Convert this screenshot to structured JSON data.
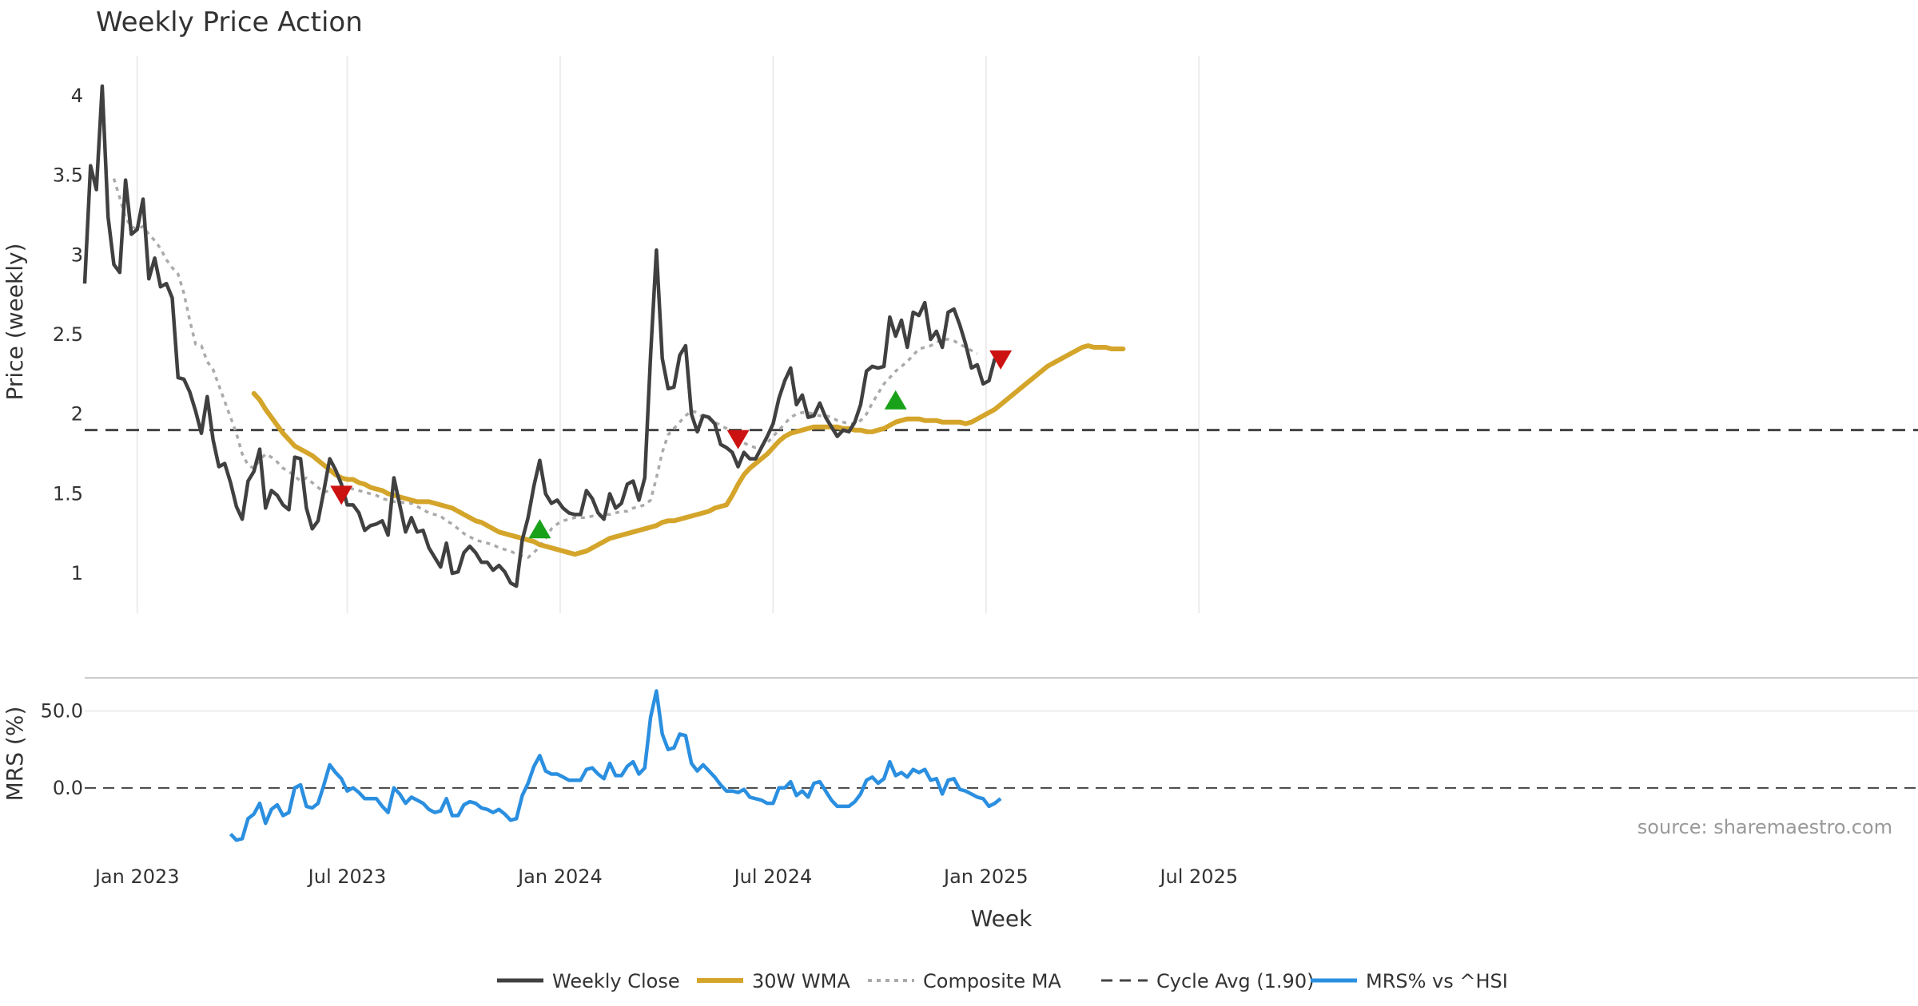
{
  "chart_data": {
    "type": "line",
    "title": "Weekly Price Action",
    "xlabel": "Week",
    "source": "source: sharemaestro.com",
    "x_ticks": [
      "Jan 2023",
      "Jul 2023",
      "Jan 2024",
      "Jul 2024",
      "Jan 2025",
      "Jul 2025"
    ],
    "price_panel": {
      "ylabel": "Price (weekly)",
      "ylim": [
        0.75,
        4.2
      ],
      "y_ticks": [
        "1",
        "1.5",
        "2",
        "2.5",
        "3",
        "3.5",
        "4"
      ],
      "cycle_avg": 1.9,
      "weekly_close": {
        "name": "Weekly Close",
        "start_week": 0,
        "values": [
          2.82,
          3.56,
          3.41,
          4.06,
          3.24,
          2.94,
          2.89,
          3.47,
          3.13,
          3.16,
          3.35,
          2.85,
          2.98,
          2.8,
          2.82,
          2.73,
          2.23,
          2.22,
          2.14,
          2.02,
          1.88,
          2.11,
          1.84,
          1.67,
          1.69,
          1.57,
          1.42,
          1.34,
          1.58,
          1.64,
          1.78,
          1.41,
          1.52,
          1.49,
          1.43,
          1.4,
          1.73,
          1.72,
          1.41,
          1.28,
          1.33,
          1.52,
          1.72,
          1.65,
          1.56,
          1.43,
          1.43,
          1.38,
          1.27,
          1.3,
          1.31,
          1.33,
          1.24,
          1.6,
          1.43,
          1.26,
          1.35,
          1.26,
          1.27,
          1.16,
          1.1,
          1.04,
          1.19,
          1.0,
          1.01,
          1.13,
          1.17,
          1.13,
          1.07,
          1.07,
          1.02,
          1.05,
          1.01,
          0.94,
          0.92,
          1.21,
          1.35,
          1.55,
          1.71,
          1.5,
          1.44,
          1.46,
          1.41,
          1.38,
          1.37,
          1.37,
          1.52,
          1.47,
          1.38,
          1.34,
          1.5,
          1.41,
          1.44,
          1.56,
          1.58,
          1.46,
          1.6,
          2.37,
          3.03,
          2.35,
          2.16,
          2.17,
          2.37,
          2.43,
          2.0,
          1.89,
          1.99,
          1.98,
          1.94,
          1.81,
          1.79,
          1.76,
          1.67,
          1.76,
          1.72,
          1.72,
          1.79,
          1.86,
          1.94,
          2.1,
          2.21,
          2.29,
          2.06,
          2.12,
          1.98,
          1.99,
          2.07,
          1.98,
          1.92,
          1.86,
          1.9,
          1.89,
          1.95,
          2.06,
          2.27,
          2.3,
          2.29,
          2.3,
          2.61,
          2.49,
          2.59,
          2.42,
          2.64,
          2.62,
          2.7,
          2.47,
          2.52,
          2.42,
          2.64,
          2.66,
          2.56,
          2.44,
          2.29,
          2.31,
          2.19,
          2.21,
          2.35
        ]
      },
      "wma_30": {
        "name": "30W WMA",
        "start_week": 29,
        "values": [
          2.13,
          2.09,
          2.03,
          1.98,
          1.93,
          1.88,
          1.84,
          1.8,
          1.78,
          1.76,
          1.74,
          1.71,
          1.68,
          1.65,
          1.62,
          1.6,
          1.59,
          1.59,
          1.57,
          1.56,
          1.54,
          1.53,
          1.52,
          1.5,
          1.49,
          1.48,
          1.47,
          1.46,
          1.45,
          1.45,
          1.45,
          1.44,
          1.43,
          1.42,
          1.41,
          1.39,
          1.37,
          1.35,
          1.33,
          1.32,
          1.3,
          1.28,
          1.26,
          1.25,
          1.24,
          1.23,
          1.22,
          1.21,
          1.2,
          1.18,
          1.17,
          1.16,
          1.15,
          1.14,
          1.13,
          1.12,
          1.13,
          1.14,
          1.16,
          1.18,
          1.2,
          1.22,
          1.23,
          1.24,
          1.25,
          1.26,
          1.27,
          1.28,
          1.29,
          1.3,
          1.32,
          1.33,
          1.33,
          1.34,
          1.35,
          1.36,
          1.37,
          1.38,
          1.39,
          1.41,
          1.42,
          1.43,
          1.49,
          1.56,
          1.62,
          1.66,
          1.69,
          1.72,
          1.75,
          1.79,
          1.83,
          1.86,
          1.88,
          1.89,
          1.9,
          1.91,
          1.92,
          1.92,
          1.92,
          1.92,
          1.92,
          1.91,
          1.91,
          1.9,
          1.9,
          1.89,
          1.89,
          1.9,
          1.91,
          1.93,
          1.95,
          1.96,
          1.97,
          1.97,
          1.97,
          1.96,
          1.96,
          1.96,
          1.95,
          1.95,
          1.95,
          1.95,
          1.94,
          1.95,
          1.97,
          1.99,
          2.01,
          2.03,
          2.06,
          2.09,
          2.12,
          2.15,
          2.18,
          2.21,
          2.24,
          2.27,
          2.3,
          2.32,
          2.34,
          2.36,
          2.38,
          2.4,
          2.42,
          2.43,
          2.42,
          2.42,
          2.42,
          2.41,
          2.41,
          2.41
        ]
      },
      "composite_ma": {
        "name": "Composite MA",
        "start_week": 5,
        "values": [
          3.48,
          3.36,
          3.23,
          3.18,
          3.16,
          3.18,
          3.13,
          3.09,
          3.04,
          2.97,
          2.92,
          2.88,
          2.76,
          2.59,
          2.44,
          2.43,
          2.33,
          2.28,
          2.18,
          2.08,
          1.98,
          1.88,
          1.75,
          1.68,
          1.66,
          1.71,
          1.75,
          1.73,
          1.7,
          1.66,
          1.64,
          1.61,
          1.58,
          1.6,
          1.57,
          1.54,
          1.51,
          1.52,
          1.53,
          1.54,
          1.54,
          1.53,
          1.52,
          1.51,
          1.5,
          1.49,
          1.47,
          1.46,
          1.45,
          1.45,
          1.44,
          1.44,
          1.42,
          1.4,
          1.38,
          1.37,
          1.36,
          1.33,
          1.31,
          1.28,
          1.25,
          1.23,
          1.21,
          1.2,
          1.19,
          1.18,
          1.16,
          1.15,
          1.14,
          1.12,
          1.11,
          1.1,
          1.13,
          1.17,
          1.22,
          1.28,
          1.31,
          1.33,
          1.34,
          1.35,
          1.35,
          1.35,
          1.36,
          1.36,
          1.37,
          1.37,
          1.38,
          1.39,
          1.39,
          1.41,
          1.42,
          1.43,
          1.46,
          1.6,
          1.76,
          1.87,
          1.91,
          1.95,
          1.99,
          2.02,
          2.01,
          1.98,
          1.97,
          1.95,
          1.93,
          1.91,
          1.88,
          1.84,
          1.82,
          1.8,
          1.79,
          1.8,
          1.82,
          1.86,
          1.9,
          1.94,
          1.98,
          2.0,
          2.01,
          2.01,
          2.0,
          1.99,
          1.99,
          1.98,
          1.96,
          1.95,
          1.94,
          1.94,
          1.96,
          2.0,
          2.07,
          2.13,
          2.19,
          2.23,
          2.27,
          2.3,
          2.33,
          2.37,
          2.41,
          2.42,
          2.43,
          2.45,
          2.47,
          2.47,
          2.46,
          2.44,
          2.42,
          2.4,
          2.38
        ]
      },
      "signals": [
        {
          "type": "sell",
          "week": 44,
          "price": 1.49
        },
        {
          "type": "buy",
          "week": 78,
          "price": 1.27
        },
        {
          "type": "sell",
          "week": 112,
          "price": 1.84
        },
        {
          "type": "buy",
          "week": 139,
          "price": 2.08
        },
        {
          "type": "sell",
          "week": 157,
          "price": 2.34
        }
      ]
    },
    "mrs_panel": {
      "ylabel": "MRS (%)",
      "ylim": [
        -38,
        70
      ],
      "y_ticks": [
        "0.0",
        "50.0"
      ],
      "mrs": {
        "name": "MRS% vs ^HSI",
        "start_week": 25,
        "values": [
          -30,
          -34,
          -33,
          -20,
          -17,
          -10,
          -23,
          -14,
          -11,
          -18,
          -16,
          0,
          2,
          -12,
          -13,
          -10,
          2,
          15,
          10,
          6,
          -2,
          0,
          -3,
          -7,
          -7,
          -7,
          -12,
          -16,
          0,
          -4,
          -10,
          -6,
          -8,
          -10,
          -14,
          -16,
          -15,
          -7,
          -18,
          -18,
          -11,
          -9,
          -10,
          -13,
          -14,
          -16,
          -14,
          -17,
          -21,
          -20,
          -5,
          3,
          14,
          21,
          11,
          9,
          9,
          7,
          5,
          5,
          5,
          12,
          13,
          9,
          6,
          16,
          8,
          8,
          14,
          17,
          9,
          13,
          46,
          63,
          35,
          25,
          26,
          35,
          34,
          16,
          11,
          15,
          11,
          7,
          2,
          -2,
          -2,
          -3,
          -1,
          -6,
          -7,
          -8,
          -10,
          -10,
          0,
          0,
          4,
          -5,
          -2,
          -6,
          3,
          4,
          -2,
          -8,
          -12,
          -12,
          -12,
          -9,
          -4,
          5,
          7,
          3,
          6,
          17,
          8,
          10,
          7,
          12,
          10,
          12,
          5,
          6,
          -4,
          5,
          6,
          -1,
          -2,
          -4,
          -6,
          -7,
          -12,
          -10,
          -7
        ]
      }
    },
    "legend": {
      "placement": "bottom-center",
      "entries": [
        "Weekly Close",
        "30W WMA",
        "Composite MA",
        "Cycle Avg (1.90)",
        "MRS% vs ^HSI"
      ]
    },
    "colors": {
      "close": "#404040",
      "wma": "#d4a52a",
      "composite": "#aaaaaa",
      "cycle": "#444444",
      "mrs": "#2b8fe0",
      "buy": "#1aa11a",
      "sell": "#cc1111",
      "grid": "#ececec"
    }
  }
}
